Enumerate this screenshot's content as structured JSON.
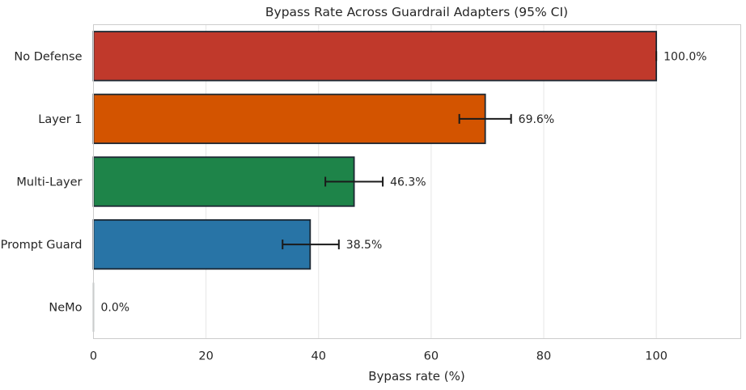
{
  "chart_data": {
    "type": "bar",
    "orientation": "horizontal",
    "title": "Bypass Rate Across Guardrail Adapters (95% CI)",
    "xlabel": "Bypass rate (%)",
    "ylabel": "",
    "xlim": [
      0,
      115
    ],
    "x_ticks": [
      0,
      20,
      40,
      60,
      80,
      100
    ],
    "grid": true,
    "categories": [
      "No Defense",
      "Layer 1",
      "Multi-Layer",
      "Prompt Guard",
      "NeMo"
    ],
    "values": [
      100.0,
      69.6,
      46.3,
      38.5,
      0.0
    ],
    "ci_low": [
      100.0,
      65.0,
      41.2,
      33.6,
      0.0
    ],
    "ci_high": [
      100.0,
      74.2,
      51.4,
      43.6,
      0.0
    ],
    "value_labels": [
      "100.0%",
      "69.6%",
      "46.3%",
      "38.5%",
      "0.0%"
    ],
    "colors": [
      "#c0392b",
      "#d35400",
      "#1e8449",
      "#2874a6",
      "#7f8c8d"
    ]
  }
}
